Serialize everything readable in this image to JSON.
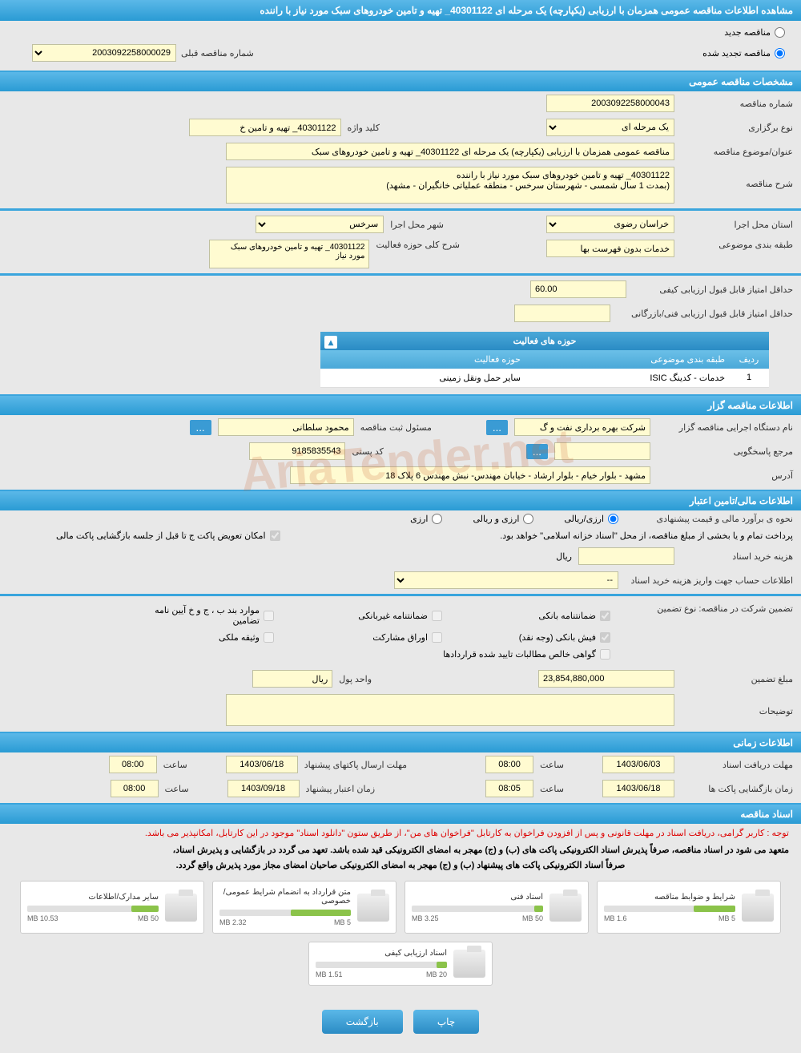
{
  "header": {
    "title": "مشاهده اطلاعات مناقصه عمومی همزمان با ارزیابی (یکپارچه) یک مرحله ای 40301122_ تهیه و تامین خودروهای سبک مورد نیاز با راننده"
  },
  "tender_type": {
    "new_label": "مناقصه جدید",
    "renewed_label": "مناقصه تجدید شده",
    "prev_number_label": "شماره مناقصه قبلی",
    "prev_number": "2003092258000029"
  },
  "sections": {
    "general": "مشخصات مناقصه عمومی",
    "organizer": "اطلاعات مناقصه گزار",
    "financial": "اطلاعات مالی/تامین اعتبار",
    "timing": "اطلاعات زمانی",
    "documents": "اسناد مناقصه"
  },
  "general": {
    "number_label": "شماره مناقصه",
    "number": "2003092258000043",
    "type_label": "نوع برگزاری",
    "type": "یک مرحله ای",
    "keyword_label": "کلید واژه",
    "keyword": "40301122_ تهیه و تامین خ",
    "subject_label": "عنوان/موضوع مناقصه",
    "subject": "مناقصه عمومی همزمان با ارزیابی (یکپارچه) یک مرحله ای 40301122_ تهیه و تامین خودروهای سبک",
    "desc_label": "شرح مناقصه",
    "desc": "40301122_ تهیه و تامین خودروهای سبک مورد نیاز با راننده\n(بمدت 1 سال شمسی - شهرستان سرخس - منطقه عملیاتی خانگیران - مشهد)",
    "province_label": "استان محل اجرا",
    "province": "خراسان رضوی",
    "city_label": "شهر محل اجرا",
    "city": "سرخس",
    "classification_label": "طبقه بندی موضوعی",
    "classification": "خدمات بدون فهرست بها",
    "activity_desc_label": "شرح کلی حوزه فعالیت",
    "activity_desc": "40301122_ تهیه و تامین خودروهای سبک مورد نیاز",
    "min_quality_score_label": "حداقل امتیاز قابل قبول ارزیابی کیفی",
    "min_quality_score": "60.00",
    "min_tech_score_label": "حداقل امتیاز قابل قبول ارزیابی فنی/بازرگانی"
  },
  "activity_table": {
    "title": "حوزه های فعالیت",
    "col_num": "ردیف",
    "col_topic": "طبقه بندی موضوعی",
    "col_field": "حوزه فعالیت",
    "rows": [
      {
        "num": "1",
        "topic": "خدمات - کدینگ ISIC",
        "field": "سایر حمل ونقل زمینی"
      }
    ]
  },
  "organizer": {
    "agency_label": "نام دستگاه اجرایی مناقصه گزار",
    "agency": "شرکت بهره برداری نفت و گ",
    "officer_label": "مسئول ثبت مناقصه",
    "officer": "محمود سلطانی",
    "contact_label": "مرجع پاسخگویی",
    "postal_label": "کد پستی",
    "postal": "9185835543",
    "address_label": "آدرس",
    "address": "مشهد - بلوار خیام - بلوار ارشاد - خیابان مهندس- نبش مهندس 6 پلاک 18"
  },
  "financial": {
    "estimate_label": "نحوه ی برآورد مالی و قیمت پیشنهادی",
    "currency_rial": "ارزی/ریالی",
    "currency_rial_foreign": "ارزی و ریالی",
    "currency_foreign": "ارزی",
    "payment_note": "پرداخت تمام و یا بخشی از مبلغ مناقصه، از محل \"اسناد خزانه اسلامی\" خواهد بود.",
    "envelope_note": "امکان تعویض پاکت ج تا قبل از جلسه بازگشایی پاکت مالی",
    "doc_cost_label": "هزینه خرید اسناد",
    "rial_unit": "ریال",
    "account_info_label": "اطلاعات حساب جهت واریز هزینه خرید اسناد",
    "account_placeholder": "--",
    "guarantee_type_label": "تضمین شرکت در مناقصه:   نوع تضمین",
    "guarantee_bank": "ضمانتنامه بانکی",
    "guarantee_nonbank": "ضمانتنامه غیربانکی",
    "guarantee_bonds": "موارد بند ب ، ج و خ آیین نامه تضامین",
    "guarantee_cash": "فیش بانکی (وجه نقد)",
    "guarantee_securities": "اوراق مشارکت",
    "guarantee_property": "وثیقه ملکی",
    "guarantee_receivables": "گواهی خالص مطالبات تایید شده قراردادها",
    "guarantee_amount_label": "مبلغ تضمین",
    "guarantee_amount": "23,854,880,000",
    "currency_unit_label": "واحد پول",
    "currency_unit": "ریال",
    "notes_label": "توضیحات"
  },
  "timing": {
    "doc_deadline_label": "مهلت دریافت اسناد",
    "doc_deadline_date": "1403/06/03",
    "doc_deadline_time_label": "ساعت",
    "doc_deadline_time": "08:00",
    "proposal_deadline_label": "مهلت ارسال پاکتهای پیشنهاد",
    "proposal_deadline_date": "1403/06/18",
    "proposal_time": "08:00",
    "opening_label": "زمان بازگشایی پاکت ها",
    "opening_date": "1403/06/18",
    "opening_time": "08:05",
    "validity_label": "زمان اعتبار پیشنهاد",
    "validity_date": "1403/09/18",
    "validity_time": "08:00"
  },
  "documents": {
    "note1": "توجه : کاربر گرامی، دریافت اسناد در مهلت قانونی و پس از افزودن فراخوان به کارتابل \"فراخوان های من\"، از طریق ستون \"دانلود اسناد\" موجود در این کارتابل، امکانپذیر می باشد.",
    "note2": "متعهد می شود در اسناد مناقصه، صرفاً پذیرش اسناد الکترونیکی پاکت های (ب) و (ج) مهجر به امضای الکترونیکی قید شده باشد. تعهد می گردد در بازگشایی و پذیرش اسناد،",
    "note3": "صرفاً اسناد الکترونیکی پاکت های پیشنهاد (ب) و (ج) مهجر به امضای الکترونیکی صاحبان امضای مجاز مورد پذیرش واقع گردد.",
    "files": [
      {
        "title": "شرایط و ضوابط مناقصه",
        "used": "1.6 MB",
        "total": "5 MB",
        "pct": 32
      },
      {
        "title": "اسناد فنی",
        "used": "3.25 MB",
        "total": "50 MB",
        "pct": 7
      },
      {
        "title": "متن قرارداد به انضمام شرایط عمومی/خصوصی",
        "used": "2.32 MB",
        "total": "5 MB",
        "pct": 46
      },
      {
        "title": "سایر مدارک/اطلاعات",
        "used": "10.53 MB",
        "total": "50 MB",
        "pct": 21
      },
      {
        "title": "اسناد ارزیابی کیفی",
        "used": "1.51 MB",
        "total": "20 MB",
        "pct": 8
      }
    ]
  },
  "buttons": {
    "print": "چاپ",
    "back": "بازگشت"
  },
  "watermark": "AriaTender.net"
}
